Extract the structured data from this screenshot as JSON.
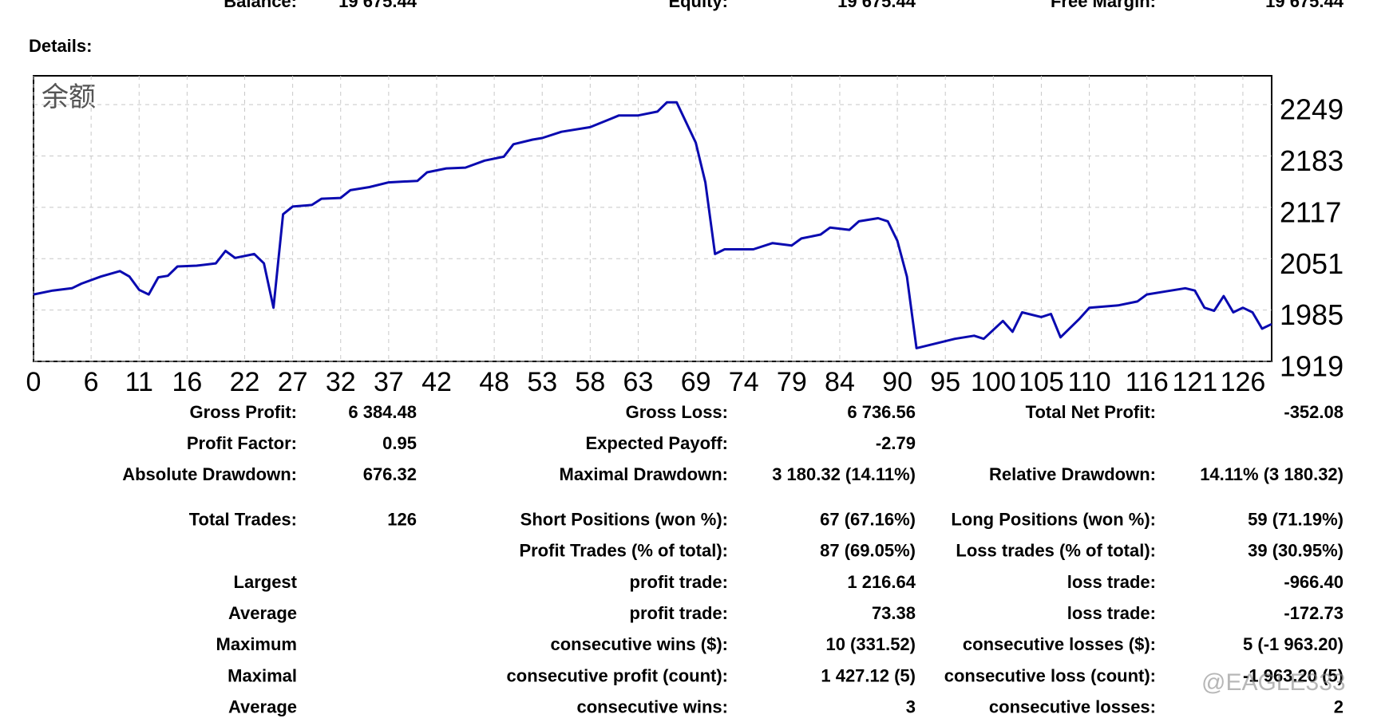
{
  "summary": [
    [
      "Balance:",
      "19 675.44"
    ],
    [
      "Equity:",
      "19 675.44"
    ],
    [
      "Free Margin:",
      "19 675.44"
    ]
  ],
  "details_label": "Details:",
  "chart_data": {
    "type": "line",
    "title": "余额",
    "x": [
      0,
      2,
      4,
      5,
      7,
      9,
      10,
      11,
      12,
      13,
      14,
      15,
      17,
      19,
      20,
      21,
      23,
      24,
      25,
      26,
      27,
      29,
      30,
      32,
      33,
      35,
      37,
      40,
      41,
      43,
      45,
      47,
      49,
      50,
      52,
      53,
      55,
      58,
      60,
      61,
      63,
      65,
      66,
      67,
      69,
      70,
      71,
      72,
      75,
      77,
      79,
      80,
      82,
      83,
      85,
      86,
      88,
      89,
      90,
      91,
      92,
      94,
      96,
      98,
      99,
      101,
      102,
      103,
      105,
      106,
      107,
      109,
      110,
      113,
      115,
      116,
      118,
      120,
      121,
      122,
      123,
      124,
      125,
      126,
      127,
      128,
      129
    ],
    "series": [
      {
        "color": "#0a0ab0",
        "values": [
          2005,
          2010,
          2013,
          2019,
          2028,
          2035,
          2028,
          2011,
          2005,
          2027,
          2029,
          2041,
          2042,
          2045,
          2061,
          2052,
          2057,
          2045,
          1988,
          2108,
          2118,
          2120,
          2128,
          2129,
          2139,
          2143,
          2149,
          2151,
          2162,
          2167,
          2168,
          2177,
          2182,
          2198,
          2204,
          2206,
          2214,
          2220,
          2230,
          2235,
          2235,
          2240,
          2252,
          2252,
          2200,
          2149,
          2057,
          2063,
          2063,
          2071,
          2068,
          2077,
          2082,
          2091,
          2088,
          2099,
          2103,
          2099,
          2074,
          2028,
          1936,
          1942,
          1948,
          1952,
          1948,
          1971,
          1957,
          1982,
          1976,
          1980,
          1950,
          1974,
          1988,
          1991,
          1996,
          2005,
          2009,
          2013,
          2010,
          1988,
          1984,
          2003,
          1982,
          1988,
          1982,
          1961,
          1967
        ]
      }
    ],
    "xlim": [
      0,
      129
    ],
    "xticks": [
      0,
      6,
      11,
      16,
      22,
      27,
      32,
      37,
      42,
      48,
      53,
      58,
      63,
      69,
      74,
      79,
      84,
      90,
      95,
      100,
      105,
      110,
      116,
      121,
      126
    ],
    "ylim": [
      1919,
      2286
    ],
    "yticks": [
      1919,
      1985,
      2051,
      2117,
      2183,
      2249
    ],
    "grid": true
  },
  "stats": [
    [
      "Gross Profit:",
      "6 384.48",
      "Gross Loss:",
      "6 736.56",
      "Total Net Profit:",
      "-352.08"
    ],
    [
      "Profit Factor:",
      "0.95",
      "Expected Payoff:",
      "-2.79",
      null,
      null
    ],
    [
      "Absolute Drawdown:",
      "676.32",
      "Maximal Drawdown:",
      "3 180.32 (14.11%)",
      "Relative Drawdown:",
      "14.11% (3 180.32)"
    ],
    [
      "Total Trades:",
      "126",
      "Short Positions (won %):",
      "67 (67.16%)",
      "Long Positions (won %):",
      "59 (71.19%)"
    ],
    [
      null,
      null,
      "Profit Trades (% of total):",
      "87 (69.05%)",
      "Loss trades (% of total):",
      "39 (30.95%)"
    ],
    [
      "Largest",
      null,
      "profit trade:",
      "1 216.64",
      "loss trade:",
      "-966.40"
    ],
    [
      "Average",
      null,
      "profit trade:",
      "73.38",
      "loss trade:",
      "-172.73"
    ],
    [
      "Maximum",
      null,
      "consecutive wins ($):",
      "10 (331.52)",
      "consecutive losses ($):",
      "5 (-1 963.20)"
    ],
    [
      "Maximal",
      null,
      "consecutive profit (count):",
      "1 427.12 (5)",
      "consecutive loss (count):",
      "-1 963.20 (5)"
    ],
    [
      "Average",
      null,
      "consecutive wins:",
      "3",
      "consecutive losses:",
      "2"
    ]
  ],
  "watermark": "@EAGLE333"
}
